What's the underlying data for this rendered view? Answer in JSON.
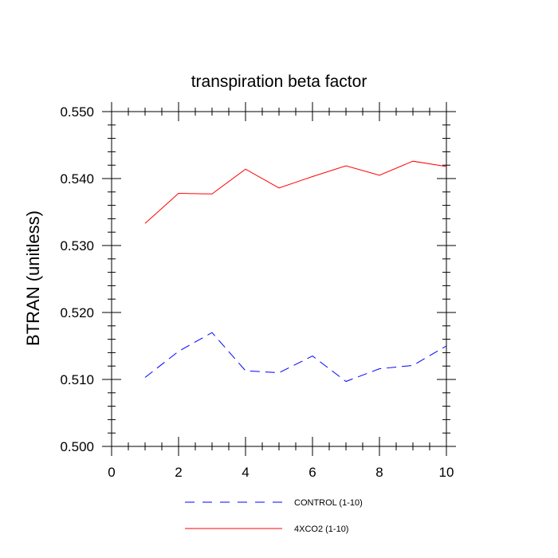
{
  "chart_data": {
    "type": "line",
    "title": "transpiration beta factor",
    "xlabel": "",
    "ylabel": "BTRAN  (unitless)",
    "xlim": [
      0,
      10
    ],
    "ylim": [
      0.5,
      0.55
    ],
    "x_ticks": [
      0,
      2,
      4,
      6,
      8,
      10
    ],
    "x_tick_labels": [
      "0",
      "2",
      "4",
      "6",
      "8",
      "10"
    ],
    "y_ticks": [
      0.5,
      0.51,
      0.52,
      0.53,
      0.54,
      0.55
    ],
    "y_tick_labels": [
      "0.500",
      "0.510",
      "0.520",
      "0.530",
      "0.540",
      "0.550"
    ],
    "grid": false,
    "legend_position": "bottom",
    "series": [
      {
        "name": "CONTROL (1-10)",
        "color": "#0000ff",
        "dash": "dashed",
        "x": [
          1,
          2,
          3,
          4,
          5,
          6,
          7,
          8,
          9,
          10
        ],
        "y": [
          0.5103,
          0.5142,
          0.517,
          0.5113,
          0.511,
          0.5135,
          0.5097,
          0.5116,
          0.5121,
          0.515
        ]
      },
      {
        "name": "4XCO2 (1-10)",
        "color": "#ff0000",
        "dash": "solid",
        "x": [
          1,
          2,
          3,
          4,
          5,
          6,
          7,
          8,
          9,
          10
        ],
        "y": [
          0.5333,
          0.5378,
          0.5377,
          0.5414,
          0.5386,
          0.5403,
          0.5419,
          0.5405,
          0.5426,
          0.5418
        ]
      }
    ]
  }
}
